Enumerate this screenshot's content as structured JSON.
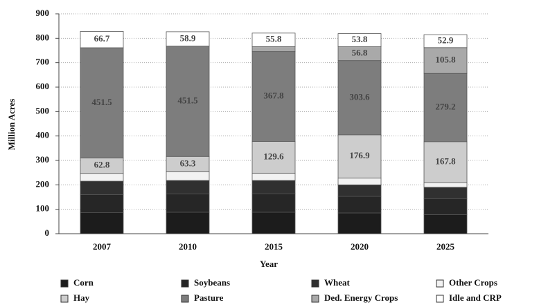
{
  "chart_data": {
    "type": "stacked_bar",
    "x_label": "Year",
    "y_label": "Million Acres",
    "categories": [
      "2007",
      "2010",
      "2015",
      "2020",
      "2025"
    ],
    "ylim": [
      0,
      900
    ],
    "yticks": [
      0,
      100,
      200,
      300,
      400,
      500,
      600,
      700,
      800,
      900
    ],
    "grid": true,
    "legend": "bottom",
    "series": [
      {
        "name": "Corn",
        "color": "#1c1c1c",
        "values": [
          86,
          88,
          88,
          85,
          78
        ]
      },
      {
        "name": "Soybeans",
        "color": "#262626",
        "values": [
          74,
          75,
          76,
          68,
          65
        ]
      },
      {
        "name": "Wheat",
        "color": "#303030",
        "values": [
          55,
          55,
          54,
          47,
          47
        ]
      },
      {
        "name": "Other Crops",
        "color": "#f2f2f2",
        "values": [
          32,
          35,
          30,
          28,
          19
        ]
      },
      {
        "name": "Hay",
        "color": "#cdcdcd",
        "values": [
          62.8,
          63.3,
          129.6,
          176.9,
          167.8
        ],
        "value_labels": [
          "62.8",
          "63.3",
          "129.6",
          "176.9",
          "167.8"
        ]
      },
      {
        "name": "Pasture",
        "color": "#7d7d7d",
        "values": [
          451.5,
          451.5,
          367.8,
          303.6,
          279.2
        ],
        "value_labels": [
          "451.5",
          "451.5",
          "367.8",
          "303.6",
          "279.2"
        ]
      },
      {
        "name": "Ded. Energy Crops",
        "color": "#a9a9a9",
        "values": [
          0,
          0,
          20,
          56.8,
          105.8
        ],
        "value_labels": [
          null,
          null,
          null,
          "56.8",
          "105.8"
        ]
      },
      {
        "name": "Idle and CRP",
        "color": "#ffffff",
        "values": [
          66.7,
          58.9,
          55.8,
          53.8,
          52.9
        ],
        "value_labels": [
          "66.7",
          "58.9",
          "55.8",
          "53.8",
          "52.9"
        ]
      }
    ]
  }
}
